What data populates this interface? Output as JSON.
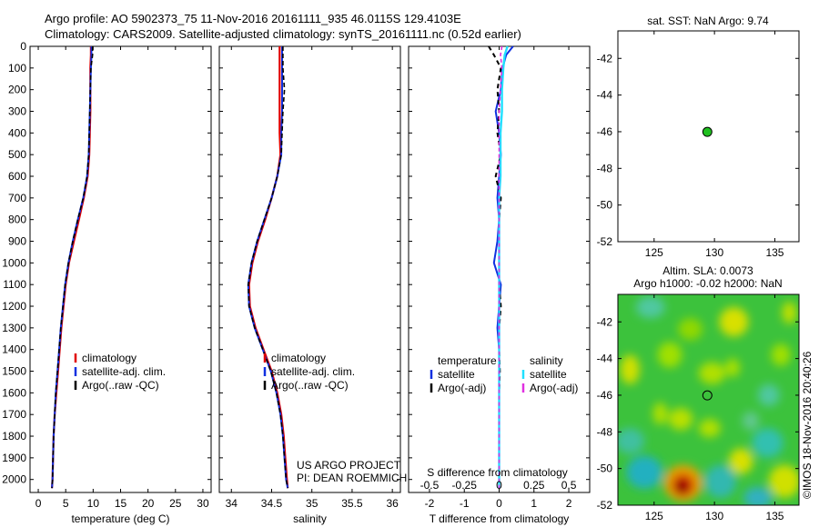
{
  "titles": {
    "line1": "Argo profile: AO 5902373_75 11-Nov-2016 20161111_935 46.0115S 129.4103E",
    "line2": "Climatology: CARS2009. Satellite-adjusted climatology: synTS_20161111.nc (0.52d earlier)"
  },
  "colors": {
    "climatology": "#e00000",
    "satellite": "#1030e0",
    "argo": "#000000",
    "sat_salinity": "#20e0ff",
    "argo_adj_salinity": "#e030e0",
    "float_marker": "#20c020"
  },
  "legend": {
    "climatology": "climatology",
    "satellite_adj": "satellite-adj. clim.",
    "argo_raw": "Argo(..raw -QC)",
    "temperature_head": "temperature",
    "salinity_head": "salinity",
    "satellite": "satellite",
    "argo_adj": "Argo(-adj)"
  },
  "chart_data": [
    {
      "id": "temperature",
      "type": "line",
      "xlabel": "temperature (deg C)",
      "xlim": [
        -1.5,
        31.5
      ],
      "xticks": [
        0,
        5,
        10,
        15,
        20,
        25,
        30
      ],
      "ylim": [
        2060,
        0
      ],
      "yticks": [
        0,
        100,
        200,
        300,
        400,
        500,
        600,
        700,
        800,
        900,
        1000,
        1100,
        1200,
        1300,
        1400,
        1500,
        1600,
        1700,
        1800,
        1900,
        2000
      ],
      "depth": [
        0,
        40,
        100,
        200,
        300,
        400,
        500,
        600,
        700,
        800,
        900,
        1000,
        1100,
        1200,
        1300,
        1400,
        1500,
        1600,
        1700,
        1800,
        1900,
        2000,
        2040
      ],
      "series": [
        {
          "name": "climatology",
          "values": [
            9.6,
            9.6,
            9.5,
            9.5,
            9.5,
            9.4,
            9.3,
            9.0,
            8.3,
            7.4,
            6.5,
            5.6,
            5.0,
            4.6,
            4.2,
            3.9,
            3.6,
            3.3,
            3.0,
            2.8,
            2.7,
            2.6,
            2.5
          ]
        },
        {
          "name": "satellite-adj. clim.",
          "values": [
            9.7,
            9.7,
            9.6,
            9.5,
            9.4,
            9.3,
            9.2,
            8.9,
            8.2,
            7.2,
            6.3,
            5.5,
            4.9,
            4.5,
            4.1,
            3.8,
            3.5,
            3.2,
            3.0,
            2.8,
            2.7,
            2.6,
            2.5
          ]
        },
        {
          "name": "Argo(..raw -QC)",
          "values": [
            9.9,
            9.9,
            9.6,
            9.5,
            9.4,
            9.3,
            9.2,
            8.9,
            8.2,
            7.2,
            6.3,
            5.5,
            4.9,
            4.5,
            4.1,
            3.8,
            3.5,
            3.2,
            3.0,
            2.8,
            2.7,
            2.6,
            2.5
          ]
        }
      ]
    },
    {
      "id": "salinity",
      "type": "line",
      "xlabel": "salinity",
      "xlim": [
        33.85,
        36.1
      ],
      "xticks": [
        34,
        34.5,
        35,
        35.5,
        36
      ],
      "ylim": [
        2060,
        0
      ],
      "depth": [
        0,
        40,
        100,
        200,
        300,
        400,
        500,
        600,
        700,
        800,
        900,
        1000,
        1100,
        1200,
        1300,
        1400,
        1500,
        1600,
        1700,
        1800,
        1900,
        2000,
        2040
      ],
      "series": [
        {
          "name": "climatology",
          "values": [
            34.6,
            34.6,
            34.6,
            34.6,
            34.6,
            34.6,
            34.61,
            34.57,
            34.5,
            34.42,
            34.33,
            34.26,
            34.22,
            34.23,
            34.3,
            34.4,
            34.5,
            34.57,
            34.62,
            34.65,
            34.67,
            34.69,
            34.7
          ]
        },
        {
          "name": "satellite-adj. clim.",
          "values": [
            34.63,
            34.63,
            34.63,
            34.63,
            34.63,
            34.62,
            34.62,
            34.57,
            34.5,
            34.41,
            34.32,
            34.25,
            34.21,
            34.22,
            34.29,
            34.39,
            34.49,
            34.56,
            34.61,
            34.64,
            34.66,
            34.68,
            34.7
          ]
        },
        {
          "name": "Argo(..raw -QC)",
          "values": [
            34.64,
            34.64,
            34.64,
            34.66,
            34.64,
            34.63,
            34.62,
            34.57,
            34.5,
            34.41,
            34.32,
            34.25,
            34.21,
            34.22,
            34.29,
            34.39,
            34.49,
            34.56,
            34.61,
            34.64,
            34.66,
            34.68,
            34.7
          ]
        }
      ],
      "annotation": [
        "US ARGO PROJECT",
        "PI: DEAN ROEMMICH"
      ]
    },
    {
      "id": "difference",
      "type": "line",
      "xlabel": "T difference from climatology",
      "xlabel_top": "S difference from climatology",
      "xlim": [
        -2.6,
        2.6
      ],
      "xticks": [
        -2,
        -1,
        0,
        1,
        2
      ],
      "xticks_s": [
        -0.5,
        -0.25,
        0,
        0.25,
        0.5
      ],
      "xticks_s_labels": [
        "-0.5",
        "-0.25",
        "0",
        "0.25",
        "0.5"
      ],
      "ylim": [
        2060,
        0
      ],
      "depth": [
        0,
        40,
        100,
        200,
        300,
        400,
        500,
        600,
        700,
        800,
        900,
        1000,
        1100,
        1200,
        1300,
        1400,
        1500,
        1600,
        1700,
        1800,
        1900,
        2000,
        2040
      ],
      "series": [
        {
          "name": "T satellite",
          "values": [
            0.4,
            0.2,
            0.1,
            0.05,
            -0.1,
            0,
            0.05,
            0,
            -0.05,
            0,
            -0.05,
            -0.15,
            0.05,
            0,
            -0.05,
            0,
            0,
            0,
            0,
            0,
            0,
            0,
            0
          ]
        },
        {
          "name": "T Argo(-adj)",
          "values": [
            -0.3,
            -0.15,
            0.05,
            -0.05,
            0,
            -0.05,
            0.05,
            -0.1,
            0.05,
            0,
            0,
            0,
            0,
            0.05,
            0,
            0,
            0.02,
            0,
            0,
            0,
            0,
            0,
            0
          ]
        },
        {
          "name": "S satellite",
          "values": [
            0.06,
            0.04,
            0.03,
            0.02,
            0.02,
            0.01,
            0.01,
            0.01,
            0,
            0,
            0,
            0,
            0,
            0,
            0,
            0,
            0,
            0,
            0,
            0,
            0,
            0,
            0
          ]
        },
        {
          "name": "S Argo(-adj)",
          "values": [
            0.02,
            0.01,
            0.02,
            0.01,
            0,
            0,
            0,
            0,
            0,
            0,
            0,
            0,
            0,
            0,
            0,
            0,
            0,
            0,
            0,
            0,
            0,
            0,
            0
          ]
        }
      ]
    },
    {
      "id": "sst_map",
      "type": "scatter",
      "title": "sat. SST: NaN Argo: 9.74",
      "xlim": [
        122,
        137
      ],
      "ylim": [
        -52,
        -40.5
      ],
      "xticks": [
        125,
        130,
        135
      ],
      "yticks": [
        -42,
        -44,
        -46,
        -48,
        -50,
        -52
      ],
      "points": [
        {
          "x": 129.41,
          "y": -46.01
        }
      ]
    },
    {
      "id": "sla_map",
      "type": "heatmap",
      "title_line1": "Altim. SLA: 0.0073",
      "title_line2": "Argo h1000: -0.02 h2000: NaN",
      "xlim": [
        122,
        137
      ],
      "ylim": [
        -52,
        -40.5
      ],
      "xticks": [
        125,
        130,
        135
      ],
      "yticks": [
        -42,
        -44,
        -46,
        -48,
        -50,
        -52
      ],
      "points": [
        {
          "x": 129.41,
          "y": -46.01
        }
      ],
      "side_label": "©IMOS 18-Nov-2016 20:40:26"
    }
  ]
}
